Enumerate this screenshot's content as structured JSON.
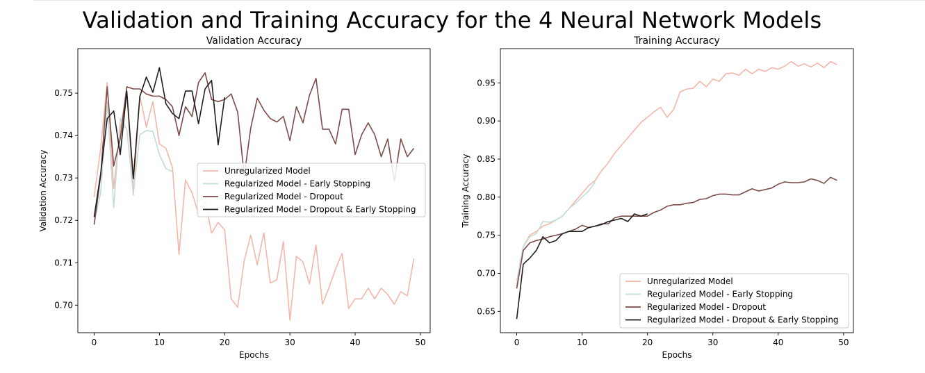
{
  "figure": {
    "title": "Validation and Training Accuracy for the 4 Neural Network Models"
  },
  "colors": {
    "unregularized": "#f4b6a8",
    "early_stopping": "#c0ddd6",
    "dropout": "#7d4a4a",
    "dropout_early": "#1e1e1e"
  },
  "chart_data": [
    {
      "id": "validation",
      "type": "line",
      "title": "Validation Accuracy",
      "xlabel": "Epochs",
      "ylabel": "Validation Accuracy",
      "xlim": [
        -2.5,
        51.5
      ],
      "ylim": [
        0.6935,
        0.7605
      ],
      "xticks": [
        0,
        10,
        20,
        30,
        40,
        50
      ],
      "yticks": [
        0.7,
        0.71,
        0.72,
        0.73,
        0.74,
        0.75
      ],
      "ytick_labels": [
        "0.70",
        "0.71",
        "0.72",
        "0.73",
        "0.74",
        "0.75"
      ],
      "grid": false,
      "legend": {
        "placement": "center-right",
        "entries": [
          "Unregularized Model",
          "Regularized Model - Early Stopping",
          "Regularized Model - Dropout",
          "Regularized Model - Dropout & Early Stopping"
        ]
      },
      "series": [
        {
          "name": "Unregularized Model",
          "color_key": "unregularized",
          "x": [
            0,
            1,
            2,
            3,
            4,
            5,
            6,
            7,
            8,
            9,
            10,
            11,
            12,
            13,
            14,
            15,
            16,
            17,
            18,
            19,
            20,
            21,
            22,
            23,
            24,
            25,
            26,
            27,
            28,
            29,
            30,
            31,
            32,
            33,
            34,
            35,
            36,
            37,
            38,
            39,
            40,
            41,
            42,
            43,
            44,
            45,
            46,
            47,
            48,
            49
          ],
          "y": [
            0.7255,
            0.737,
            0.7525,
            0.7275,
            0.7415,
            0.7505,
            0.726,
            0.7495,
            0.742,
            0.748,
            0.738,
            0.737,
            0.7325,
            0.712,
            0.7295,
            0.7265,
            0.7215,
            0.7245,
            0.717,
            0.7195,
            0.7178,
            0.7015,
            0.6995,
            0.7105,
            0.7165,
            0.7095,
            0.717,
            0.7052,
            0.706,
            0.715,
            0.6965,
            0.7115,
            0.7102,
            0.705,
            0.7142,
            0.7002,
            0.7042,
            0.7085,
            0.7122,
            0.6992,
            0.7015,
            0.7015,
            0.704,
            0.7015,
            0.704,
            0.7025,
            0.7002,
            0.7032,
            0.7022,
            0.711
          ]
        },
        {
          "name": "Regularized Model - Early Stopping",
          "color_key": "early_stopping",
          "x": [
            0,
            1,
            2,
            3,
            4,
            5,
            6,
            7,
            8,
            9,
            10,
            11,
            12
          ],
          "y": [
            0.7195,
            0.7265,
            0.748,
            0.723,
            0.744,
            0.7415,
            0.7262,
            0.7402,
            0.7412,
            0.741,
            0.7355,
            0.7322,
            0.7315
          ]
        },
        {
          "name": "Regularized Model - Dropout",
          "color_key": "dropout",
          "x": [
            0,
            1,
            2,
            3,
            4,
            5,
            6,
            7,
            8,
            9,
            10,
            11,
            12,
            13,
            14,
            15,
            16,
            17,
            18,
            19,
            20,
            21,
            22,
            23,
            24,
            25,
            26,
            27,
            28,
            29,
            30,
            31,
            32,
            33,
            34,
            35,
            36,
            37,
            38,
            39,
            40,
            41,
            42,
            43,
            44,
            45,
            46,
            47,
            48,
            49
          ],
          "y": [
            0.719,
            0.7305,
            0.7515,
            0.7328,
            0.7392,
            0.7515,
            0.751,
            0.751,
            0.7498,
            0.7493,
            0.7493,
            0.7485,
            0.7468,
            0.74,
            0.7468,
            0.7445,
            0.7525,
            0.7548,
            0.7485,
            0.748,
            0.7485,
            0.7498,
            0.7455,
            0.7305,
            0.7418,
            0.7488,
            0.746,
            0.744,
            0.7432,
            0.7445,
            0.7388,
            0.7468,
            0.743,
            0.7495,
            0.7535,
            0.7415,
            0.7415,
            0.738,
            0.7462,
            0.7462,
            0.7355,
            0.7402,
            0.743,
            0.7402,
            0.735,
            0.7392,
            0.7292,
            0.7392,
            0.735,
            0.737
          ]
        },
        {
          "name": "Regularized Model - Dropout & Early Stopping",
          "color_key": "dropout_early",
          "x": [
            0,
            1,
            2,
            3,
            4,
            5,
            6,
            7,
            8,
            9,
            10,
            11,
            12,
            13,
            14,
            15,
            16,
            17,
            18,
            19,
            20
          ],
          "y": [
            0.7208,
            0.731,
            0.744,
            0.7458,
            0.7355,
            0.7505,
            0.7298,
            0.7492,
            0.7538,
            0.7502,
            0.756,
            0.7475,
            0.7452,
            0.744,
            0.7505,
            0.7505,
            0.7428,
            0.751,
            0.753,
            0.7378,
            0.749
          ]
        }
      ]
    },
    {
      "id": "training",
      "type": "line",
      "title": "Training Accuracy",
      "xlabel": "Epochs",
      "ylabel": "Training Accuracy",
      "xlim": [
        -2.5,
        51.5
      ],
      "ylim": [
        0.622,
        0.995
      ],
      "xticks": [
        0,
        10,
        20,
        30,
        40,
        50
      ],
      "yticks": [
        0.65,
        0.7,
        0.75,
        0.8,
        0.85,
        0.9,
        0.95
      ],
      "ytick_labels": [
        "0.65",
        "0.70",
        "0.75",
        "0.80",
        "0.85",
        "0.90",
        "0.95"
      ],
      "grid": false,
      "legend": {
        "placement": "lower-right",
        "entries": [
          "Unregularized Model",
          "Regularized Model - Early Stopping",
          "Regularized Model - Dropout",
          "Regularized Model - Dropout & Early Stopping"
        ]
      },
      "series": [
        {
          "name": "Unregularized Model",
          "color_key": "unregularized",
          "x": [
            0,
            1,
            2,
            3,
            4,
            5,
            6,
            7,
            8,
            9,
            10,
            11,
            12,
            13,
            14,
            15,
            16,
            17,
            18,
            19,
            20,
            21,
            22,
            23,
            24,
            25,
            26,
            27,
            28,
            29,
            30,
            31,
            32,
            33,
            34,
            35,
            36,
            37,
            38,
            39,
            40,
            41,
            42,
            43,
            44,
            45,
            46,
            47,
            48,
            49
          ],
          "y": [
            0.683,
            0.735,
            0.75,
            0.755,
            0.762,
            0.765,
            0.77,
            0.775,
            0.785,
            0.795,
            0.805,
            0.815,
            0.822,
            0.835,
            0.845,
            0.858,
            0.868,
            0.878,
            0.888,
            0.898,
            0.905,
            0.912,
            0.918,
            0.905,
            0.915,
            0.938,
            0.942,
            0.943,
            0.952,
            0.945,
            0.955,
            0.952,
            0.962,
            0.963,
            0.96,
            0.968,
            0.962,
            0.968,
            0.965,
            0.97,
            0.968,
            0.972,
            0.978,
            0.972,
            0.975,
            0.971,
            0.976,
            0.97,
            0.978,
            0.974
          ]
        },
        {
          "name": "Regularized Model - Early Stopping",
          "color_key": "early_stopping",
          "x": [
            0,
            1,
            2,
            3,
            4,
            5,
            6,
            7,
            8,
            9,
            10,
            11,
            12
          ],
          "y": [
            0.69,
            0.735,
            0.748,
            0.752,
            0.768,
            0.767,
            0.77,
            0.775,
            0.785,
            0.792,
            0.8,
            0.808,
            0.82
          ]
        },
        {
          "name": "Regularized Model - Dropout",
          "color_key": "dropout",
          "x": [
            0,
            1,
            2,
            3,
            4,
            5,
            6,
            7,
            8,
            9,
            10,
            11,
            12,
            13,
            14,
            15,
            16,
            17,
            18,
            19,
            20,
            21,
            22,
            23,
            24,
            25,
            26,
            27,
            28,
            29,
            30,
            31,
            32,
            33,
            34,
            35,
            36,
            37,
            38,
            39,
            40,
            41,
            42,
            43,
            44,
            45,
            46,
            47,
            48,
            49
          ],
          "y": [
            0.68,
            0.73,
            0.74,
            0.743,
            0.745,
            0.748,
            0.75,
            0.752,
            0.755,
            0.758,
            0.763,
            0.76,
            0.762,
            0.765,
            0.765,
            0.773,
            0.775,
            0.775,
            0.775,
            0.775,
            0.775,
            0.78,
            0.783,
            0.788,
            0.79,
            0.79,
            0.792,
            0.793,
            0.797,
            0.798,
            0.802,
            0.804,
            0.804,
            0.803,
            0.803,
            0.807,
            0.811,
            0.808,
            0.81,
            0.812,
            0.817,
            0.82,
            0.819,
            0.819,
            0.82,
            0.824,
            0.822,
            0.818,
            0.826,
            0.822
          ]
        },
        {
          "name": "Regularized Model - Dropout & Early Stopping",
          "color_key": "dropout_early",
          "x": [
            0,
            1,
            2,
            3,
            4,
            5,
            6,
            7,
            8,
            9,
            10,
            11,
            12,
            13,
            14,
            15,
            16,
            17,
            18,
            19,
            20
          ],
          "y": [
            0.64,
            0.712,
            0.72,
            0.73,
            0.748,
            0.74,
            0.743,
            0.752,
            0.755,
            0.755,
            0.755,
            0.76,
            0.762,
            0.764,
            0.768,
            0.77,
            0.772,
            0.768,
            0.778,
            0.775,
            0.778
          ]
        }
      ]
    }
  ]
}
